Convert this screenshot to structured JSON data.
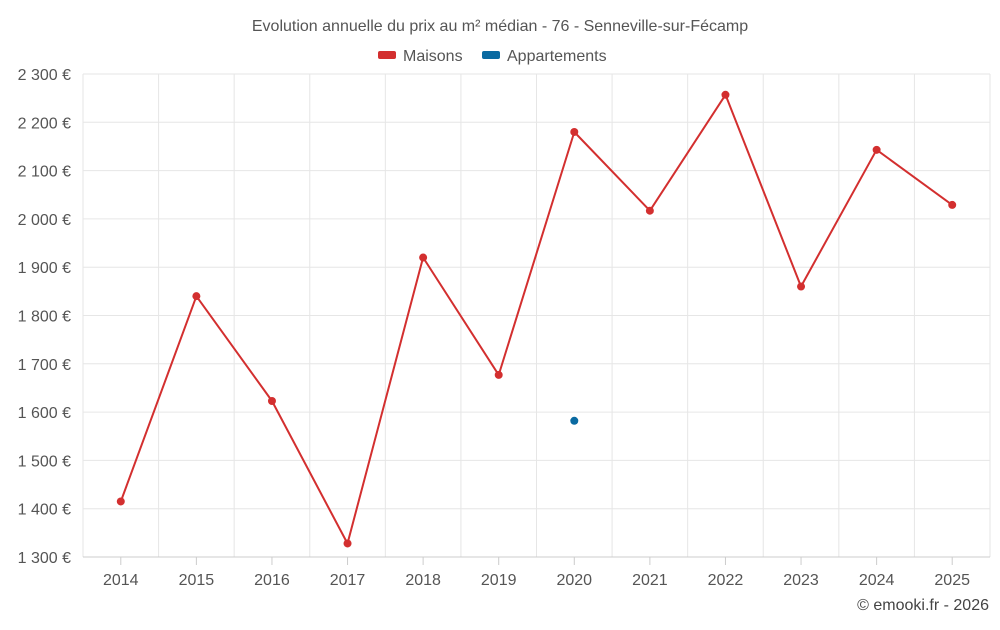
{
  "chart_data": {
    "type": "line",
    "title": "Evolution annuelle du prix au m² médian - 76 - Senneville-sur-Fécamp",
    "categories": [
      "2014",
      "2015",
      "2016",
      "2017",
      "2018",
      "2019",
      "2020",
      "2021",
      "2022",
      "2023",
      "2024",
      "2025"
    ],
    "ylim": [
      1300,
      2300
    ],
    "y_ticks": [
      1300,
      1400,
      1500,
      1600,
      1700,
      1800,
      1900,
      2000,
      2100,
      2200,
      2300
    ],
    "y_tick_labels": [
      "1 300 €",
      "1 400 €",
      "1 500 €",
      "1 600 €",
      "1 700 €",
      "1 800 €",
      "1 900 €",
      "2 000 €",
      "2 100 €",
      "2 200 €",
      "2 300 €"
    ],
    "grid": true,
    "legend_position": "top-center",
    "series": [
      {
        "name": "Maisons",
        "color": "#d32f2f",
        "values": [
          1415,
          1840,
          1623,
          1328,
          1920,
          1677,
          2180,
          2017,
          2257,
          1860,
          2143,
          2029
        ]
      },
      {
        "name": "Appartements",
        "color": "#0a6aa1",
        "values": [
          null,
          null,
          null,
          null,
          null,
          null,
          1582,
          null,
          null,
          null,
          null,
          null
        ]
      }
    ]
  },
  "credit": "© emooki.fr - 2026"
}
